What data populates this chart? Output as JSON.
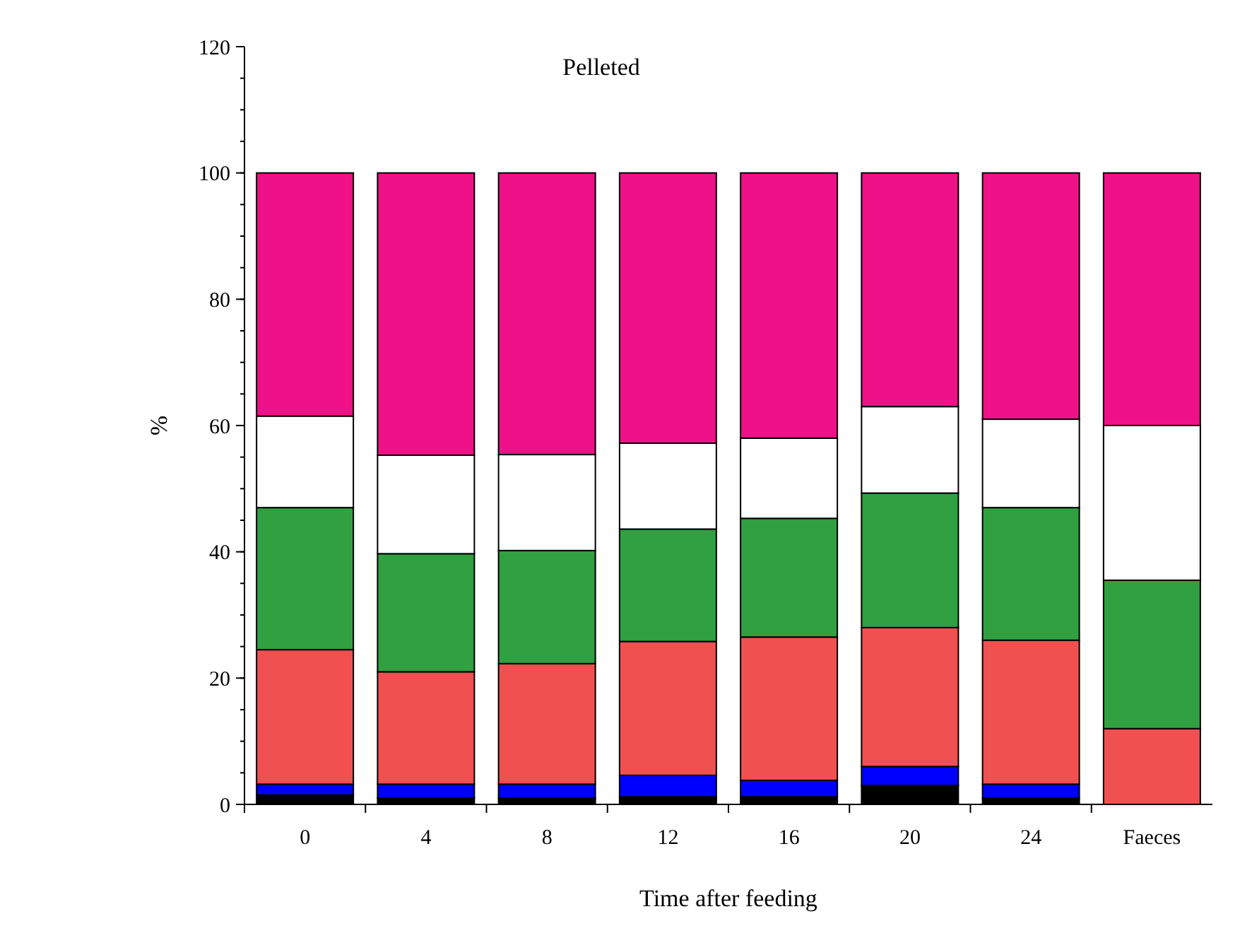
{
  "chart_data": {
    "type": "bar",
    "title": "Pelleted",
    "xlabel": "Time after feeding",
    "ylabel": "%",
    "stacked": true,
    "categories": [
      "0",
      "4",
      "8",
      "12",
      "16",
      "20",
      "24",
      "Faeces"
    ],
    "series": [
      {
        "color": "#000000",
        "values": [
          1.5,
          1,
          1,
          1.2,
          1.2,
          3,
          1,
          null
        ]
      },
      {
        "color": "#0000ff",
        "values": [
          1.7,
          2.2,
          2.2,
          3.4,
          2.6,
          3,
          2.2,
          null
        ]
      },
      {
        "color": "#f05050",
        "values": [
          21.3,
          17.8,
          19.1,
          21.2,
          22.7,
          22,
          22.8,
          12
        ]
      },
      {
        "color": "#30a040",
        "values": [
          22.5,
          18.7,
          17.9,
          17.8,
          18.8,
          21.3,
          21,
          23.5
        ]
      },
      {
        "color": "#ffffff",
        "values": [
          14.5,
          15.6,
          15.2,
          13.6,
          12.7,
          13.7,
          14,
          24.5
        ]
      },
      {
        "color": "#ee1188",
        "values": [
          38.5,
          44.7,
          44.6,
          42.8,
          42,
          37,
          39,
          40
        ]
      }
    ],
    "ylim": [
      0,
      120
    ],
    "yticks": [
      0,
      20,
      40,
      60,
      80,
      100,
      120
    ],
    "grid": false
  }
}
